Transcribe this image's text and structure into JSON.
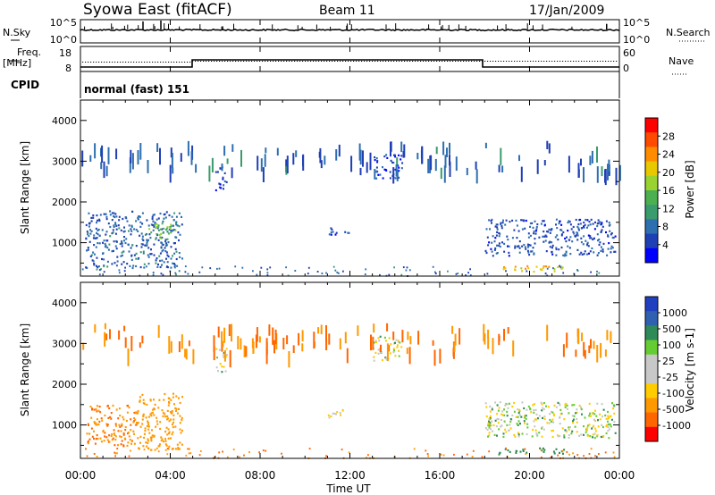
{
  "header": {
    "station": "Syowa East (fitACF)",
    "beam": "Beam 11",
    "date": "17/Jan/2009"
  },
  "panels": {
    "noise": {
      "left_label": "N.Sky",
      "left_ticks": [
        "10^5",
        "10^0"
      ],
      "right_label": "N.Search",
      "right_ticks": [
        "10^5",
        "10^0"
      ]
    },
    "freq": {
      "left_label_1": "Freq.",
      "left_label_2": "[MHz]",
      "left_ticks": [
        "18",
        "8"
      ],
      "right_label": "Nave",
      "right_ticks": [
        "60",
        "0"
      ]
    },
    "cpid": {
      "label": "CPID",
      "text": "normal (fast) 151"
    }
  },
  "colorbars": {
    "power": {
      "label": "Power [dB]",
      "ticks": [
        "28",
        "24",
        "20",
        "16",
        "12",
        "8",
        "4"
      ],
      "colors": [
        "#ff0000",
        "#ff4a00",
        "#ff8c00",
        "#e8c800",
        "#9ad232",
        "#4caf50",
        "#3a9b6e",
        "#2e6fb0",
        "#1f3fb5",
        "#0000ff"
      ]
    },
    "velocity": {
      "label": "Velocity [m s-1]",
      "ticks": [
        "1000",
        "500",
        "100",
        "25",
        "-25",
        "-100",
        "-500",
        "-1000"
      ],
      "colors": [
        "#2040c0",
        "#3060b0",
        "#2e8b57",
        "#66cc33",
        "#c8c8c8",
        "#c8c8c8",
        "#ffcc00",
        "#ff9900",
        "#ff6600",
        "#ff0000"
      ]
    }
  },
  "axes": {
    "x_label": "Time UT",
    "x_ticks": [
      "00:00",
      "04:00",
      "08:00",
      "12:00",
      "16:00",
      "20:00",
      "00:00"
    ],
    "y_label": "Slant Range [km]",
    "y_ticks": [
      "4000",
      "3000",
      "2000",
      "1000"
    ]
  },
  "chart_data": [
    {
      "type": "heatmap",
      "title": "Syowa East (fitACF) Beam 11 17/Jan/2009",
      "panel": "power",
      "xlabel": "Time UT",
      "ylabel": "Slant Range [km]",
      "xlim": [
        0,
        24
      ],
      "ylim": [
        180,
        4500
      ],
      "colorbar": {
        "label": "Power [dB]",
        "ticks": [
          4,
          8,
          12,
          16,
          20,
          24,
          28
        ]
      },
      "regions": [
        {
          "t_start": 0.2,
          "t_end": 4.5,
          "r_start": 400,
          "r_end": 1800,
          "value": 8
        },
        {
          "t_start": 3.0,
          "t_end": 4.2,
          "r_start": 1100,
          "r_end": 1500,
          "value": 16
        },
        {
          "t_start": 6.0,
          "t_end": 6.5,
          "r_start": 2300,
          "r_end": 2900,
          "value": 6
        },
        {
          "t_start": 11.0,
          "t_end": 12.0,
          "r_start": 1200,
          "r_end": 1400,
          "value": 6
        },
        {
          "t_start": 13.0,
          "t_end": 14.3,
          "r_start": 2600,
          "r_end": 3200,
          "value": 6
        },
        {
          "t_start": 18.0,
          "t_end": 23.8,
          "r_start": 700,
          "r_end": 1600,
          "value": 7
        },
        {
          "t_start": 18.5,
          "t_end": 21.5,
          "r_start": 300,
          "r_end": 450,
          "value": 22
        }
      ]
    },
    {
      "type": "heatmap",
      "panel": "velocity",
      "xlabel": "Time UT",
      "ylabel": "Slant Range [km]",
      "xlim": [
        0,
        24
      ],
      "ylim": [
        180,
        4500
      ],
      "colorbar": {
        "label": "Velocity [m s-1]",
        "ticks": [
          1000,
          500,
          100,
          25,
          -25,
          -100,
          -500,
          -1000
        ]
      },
      "regions": [
        {
          "t_start": 0.2,
          "t_end": 2.5,
          "r_start": 500,
          "r_end": 1500,
          "value": -300
        },
        {
          "t_start": 2.5,
          "t_end": 4.5,
          "r_start": 400,
          "r_end": 1800,
          "value": -200
        },
        {
          "t_start": 6.0,
          "t_end": 6.5,
          "r_start": 2300,
          "r_end": 2900,
          "value": 0
        },
        {
          "t_start": 11.0,
          "t_end": 12.0,
          "r_start": 1200,
          "r_end": 1400,
          "value": 0
        },
        {
          "t_start": 13.0,
          "t_end": 14.3,
          "r_start": 2600,
          "r_end": 3200,
          "value": 0
        },
        {
          "t_start": 18.0,
          "t_end": 23.8,
          "r_start": 700,
          "r_end": 1600,
          "value": 0
        },
        {
          "t_start": 18.5,
          "t_end": 21.5,
          "r_start": 300,
          "r_end": 450,
          "value": 200
        }
      ]
    }
  ]
}
